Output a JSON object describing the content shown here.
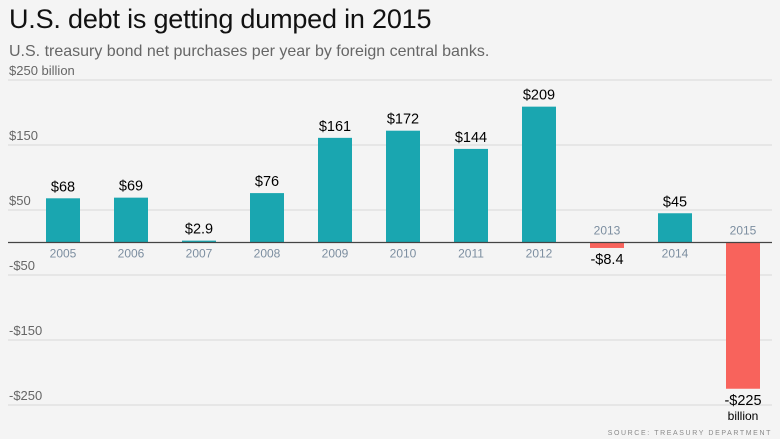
{
  "header": {
    "title": "U.S. debt is getting dumped in 2015",
    "subtitle": "U.S. treasury bond net purchases per year by foreign central banks."
  },
  "source": "SOURCE: TREASURY DEPARTMENT",
  "colors": {
    "positive": "#1aa6b0",
    "negative": "#f8635c",
    "grid": "#d9d9d9",
    "axis": "#444444"
  },
  "chart_data": {
    "type": "bar",
    "title": "U.S. debt is getting dumped in 2015",
    "subtitle": "U.S. treasury bond net purchases per year by foreign central banks.",
    "xlabel": "",
    "ylabel": "billion",
    "ylim": [
      -250,
      250
    ],
    "yticks": [
      250,
      150,
      50,
      -50,
      -150,
      -250
    ],
    "ytick_labels": [
      "$250 billion",
      "$150",
      "$50",
      "-$50",
      "-$150",
      "-$250"
    ],
    "grid": true,
    "categories": [
      "2005",
      "2006",
      "2007",
      "2008",
      "2009",
      "2010",
      "2011",
      "2012",
      "2013",
      "2014",
      "2015"
    ],
    "values": [
      68,
      69,
      2.9,
      76,
      161,
      172,
      144,
      209,
      -8.4,
      45,
      -225
    ],
    "data_labels": [
      "$68",
      "$69",
      "$2.9",
      "$76",
      "$161",
      "$172",
      "$144",
      "$209",
      "-$8.4",
      "$45",
      "-$225"
    ],
    "last_label_unit": "billion"
  }
}
